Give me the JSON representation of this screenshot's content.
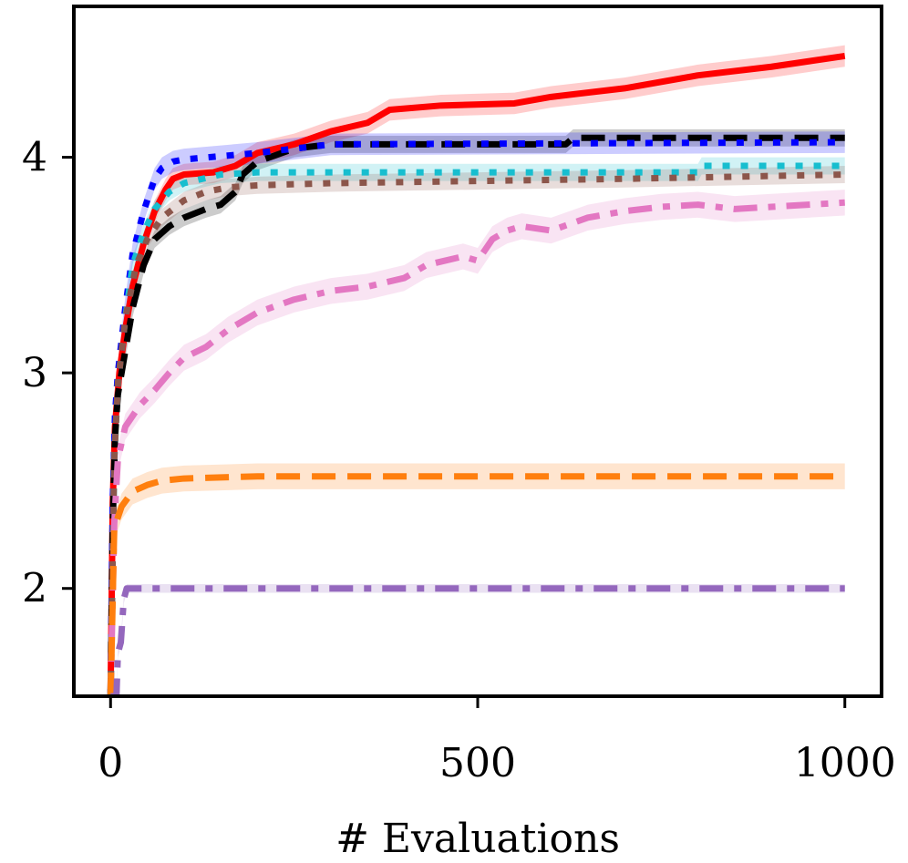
{
  "chart_data": {
    "type": "line",
    "title": "",
    "xlabel": "# Evaluations",
    "ylabel": "",
    "xlim": [
      -50,
      1050
    ],
    "ylim": [
      1.5,
      4.7
    ],
    "x_ticks": [
      0,
      500,
      1000
    ],
    "x_tick_labels": [
      "0",
      "500",
      "1000"
    ],
    "y_ticks": [
      2,
      3,
      4
    ],
    "y_tick_labels": [
      "2",
      "3",
      "4"
    ],
    "grid": false,
    "legend": "none",
    "series": [
      {
        "name": "red-solid",
        "color": "#ff0000",
        "style": "solid",
        "band": 0.05,
        "points": [
          [
            0,
            1.5
          ],
          [
            3,
            2.4
          ],
          [
            6,
            2.75
          ],
          [
            12,
            3.0
          ],
          [
            20,
            3.2
          ],
          [
            30,
            3.4
          ],
          [
            45,
            3.6
          ],
          [
            60,
            3.75
          ],
          [
            75,
            3.85
          ],
          [
            85,
            3.9
          ],
          [
            100,
            3.92
          ],
          [
            140,
            3.93
          ],
          [
            170,
            3.96
          ],
          [
            200,
            4.02
          ],
          [
            250,
            4.06
          ],
          [
            300,
            4.12
          ],
          [
            350,
            4.16
          ],
          [
            380,
            4.22
          ],
          [
            450,
            4.24
          ],
          [
            550,
            4.25
          ],
          [
            600,
            4.28
          ],
          [
            700,
            4.32
          ],
          [
            800,
            4.38
          ],
          [
            900,
            4.42
          ],
          [
            1000,
            4.47
          ]
        ]
      },
      {
        "name": "black-dashed",
        "color": "#000000",
        "style": "dashed",
        "band": 0.04,
        "points": [
          [
            0,
            1.5
          ],
          [
            3,
            2.3
          ],
          [
            6,
            2.7
          ],
          [
            10,
            2.9
          ],
          [
            20,
            3.1
          ],
          [
            30,
            3.3
          ],
          [
            45,
            3.5
          ],
          [
            60,
            3.62
          ],
          [
            80,
            3.68
          ],
          [
            100,
            3.72
          ],
          [
            130,
            3.76
          ],
          [
            150,
            3.78
          ],
          [
            170,
            3.84
          ],
          [
            180,
            3.92
          ],
          [
            200,
            3.98
          ],
          [
            250,
            4.04
          ],
          [
            300,
            4.06
          ],
          [
            400,
            4.06
          ],
          [
            620,
            4.06
          ],
          [
            630,
            4.09
          ],
          [
            1000,
            4.09
          ]
        ]
      },
      {
        "name": "blue-dotted",
        "color": "#0000ff",
        "style": "dotted",
        "band": 0.05,
        "points": [
          [
            0,
            1.5
          ],
          [
            3,
            2.4
          ],
          [
            6,
            2.8
          ],
          [
            10,
            3.0
          ],
          [
            20,
            3.3
          ],
          [
            30,
            3.55
          ],
          [
            45,
            3.75
          ],
          [
            60,
            3.9
          ],
          [
            70,
            3.95
          ],
          [
            85,
            3.98
          ],
          [
            100,
            3.99
          ],
          [
            200,
            4.02
          ],
          [
            300,
            4.06
          ],
          [
            1000,
            4.07
          ]
        ]
      },
      {
        "name": "cyan-dotted",
        "color": "#17becf",
        "style": "dotted",
        "band": 0.04,
        "points": [
          [
            0,
            1.5
          ],
          [
            5,
            2.6
          ],
          [
            10,
            2.95
          ],
          [
            20,
            3.25
          ],
          [
            30,
            3.5
          ],
          [
            45,
            3.65
          ],
          [
            60,
            3.76
          ],
          [
            80,
            3.84
          ],
          [
            100,
            3.88
          ],
          [
            150,
            3.92
          ],
          [
            200,
            3.93
          ],
          [
            800,
            3.93
          ],
          [
            805,
            3.96
          ],
          [
            1000,
            3.96
          ]
        ]
      },
      {
        "name": "brown-dotted",
        "color": "#8c564b",
        "style": "dotted",
        "band": 0.04,
        "points": [
          [
            0,
            1.5
          ],
          [
            5,
            2.6
          ],
          [
            10,
            2.95
          ],
          [
            20,
            3.25
          ],
          [
            35,
            3.5
          ],
          [
            50,
            3.62
          ],
          [
            70,
            3.72
          ],
          [
            100,
            3.8
          ],
          [
            130,
            3.84
          ],
          [
            160,
            3.86
          ],
          [
            200,
            3.87
          ],
          [
            300,
            3.88
          ],
          [
            500,
            3.89
          ],
          [
            700,
            3.9
          ],
          [
            1000,
            3.92
          ]
        ]
      },
      {
        "name": "pink-dashdot",
        "color": "#e377c2",
        "style": "dashdot",
        "band": 0.06,
        "points": [
          [
            0,
            1.5
          ],
          [
            5,
            2.3
          ],
          [
            10,
            2.6
          ],
          [
            20,
            2.75
          ],
          [
            40,
            2.85
          ],
          [
            60,
            2.92
          ],
          [
            80,
            3.0
          ],
          [
            100,
            3.07
          ],
          [
            130,
            3.12
          ],
          [
            160,
            3.2
          ],
          [
            200,
            3.28
          ],
          [
            250,
            3.34
          ],
          [
            300,
            3.38
          ],
          [
            350,
            3.4
          ],
          [
            400,
            3.44
          ],
          [
            430,
            3.5
          ],
          [
            480,
            3.54
          ],
          [
            500,
            3.52
          ],
          [
            520,
            3.62
          ],
          [
            540,
            3.66
          ],
          [
            560,
            3.68
          ],
          [
            600,
            3.66
          ],
          [
            650,
            3.72
          ],
          [
            700,
            3.75
          ],
          [
            750,
            3.77
          ],
          [
            800,
            3.78
          ],
          [
            850,
            3.76
          ],
          [
            900,
            3.77
          ],
          [
            950,
            3.78
          ],
          [
            1000,
            3.79
          ]
        ]
      },
      {
        "name": "orange-dashed",
        "color": "#ff7f0e",
        "style": "dashed",
        "band": 0.06,
        "points": [
          [
            0,
            1.5
          ],
          [
            5,
            2.28
          ],
          [
            15,
            2.38
          ],
          [
            30,
            2.45
          ],
          [
            50,
            2.48
          ],
          [
            70,
            2.5
          ],
          [
            100,
            2.51
          ],
          [
            200,
            2.52
          ],
          [
            1000,
            2.52
          ]
        ]
      },
      {
        "name": "purple-dashdot",
        "color": "#9467bd",
        "style": "dashdot",
        "band": 0.02,
        "points": [
          [
            0,
            1.5
          ],
          [
            8,
            1.5
          ],
          [
            10,
            1.7
          ],
          [
            14,
            1.75
          ],
          [
            18,
            1.95
          ],
          [
            22,
            2.0
          ],
          [
            1000,
            2.0
          ]
        ]
      }
    ]
  }
}
